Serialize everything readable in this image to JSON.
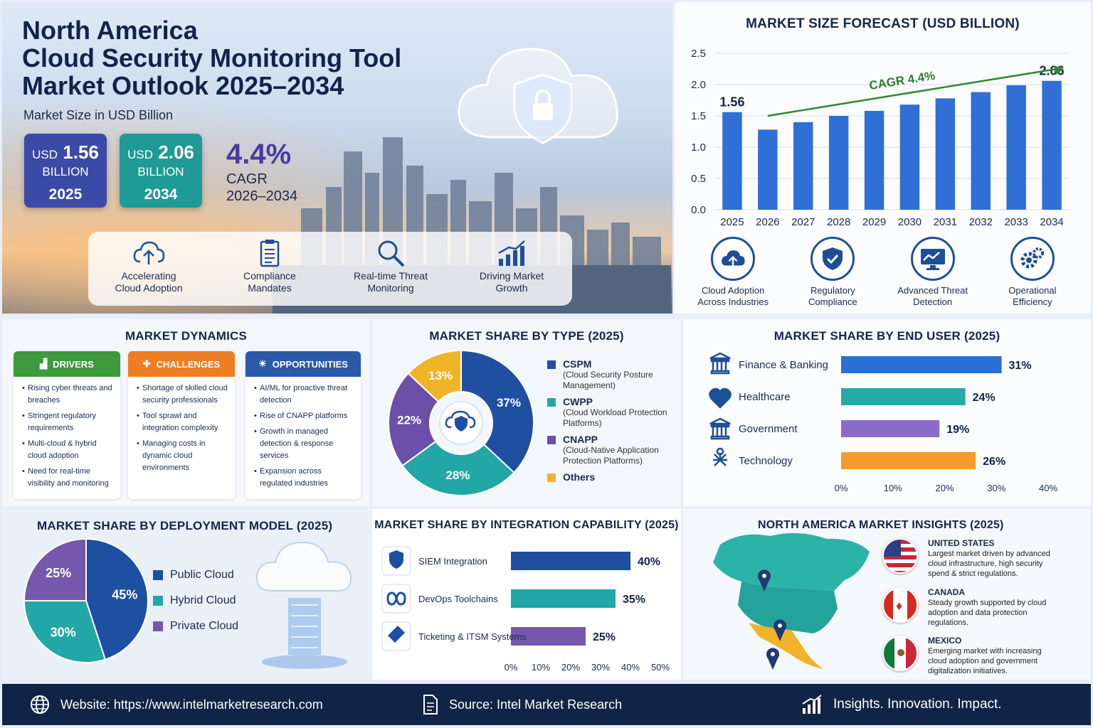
{
  "hero": {
    "title_line1": "North America",
    "title_line2": "Cloud Security Monitoring Tool",
    "title_line3": "Market Outlook 2025–2034",
    "subtitle": "Market Size in USD Billion",
    "kpi1": {
      "prefix": "USD",
      "value": "1.56",
      "unit": "BILLION",
      "year": "2025",
      "color": "#3a4aa6"
    },
    "kpi2": {
      "prefix": "USD",
      "value": "2.06",
      "unit": "BILLION",
      "year": "2034",
      "color": "#1f9a96"
    },
    "cagr_value": "4.4%",
    "cagr_label": "CAGR",
    "cagr_period": "2026–2034",
    "features": [
      {
        "icon": "cloud-upload-icon",
        "l1": "Accelerating",
        "l2": "Cloud Adoption"
      },
      {
        "icon": "clipboard-icon",
        "l1": "Compliance",
        "l2": "Mandates"
      },
      {
        "icon": "magnifier-icon",
        "l1": "Real-time Threat",
        "l2": "Monitoring"
      },
      {
        "icon": "growth-chart-icon",
        "l1": "Driving Market",
        "l2": "Growth"
      }
    ]
  },
  "forecast": {
    "title": "MARKET SIZE FORECAST (USD BILLION)",
    "cagr_annotation": "CAGR 4.4%",
    "first_label": "1.56",
    "last_label": "2.06",
    "icons": [
      {
        "icon": "cloud-upload-icon",
        "l1": "Cloud Adoption",
        "l2": "Across Industries"
      },
      {
        "icon": "shield-check-icon",
        "l1": "Regulatory",
        "l2": "Compliance"
      },
      {
        "icon": "monitor-icon",
        "l1": "Advanced Threat",
        "l2": "Detection"
      },
      {
        "icon": "gears-icon",
        "l1": "Operational",
        "l2": "Efficiency"
      }
    ]
  },
  "dynamics": {
    "title": "MARKET DYNAMICS",
    "drivers": {
      "label": "DRIVERS",
      "color": "#3d9a3d",
      "items": [
        "Rising cyber threats and breaches",
        "Stringent regulatory requirements",
        "Multi-cloud & hybrid cloud adoption",
        "Need for real-time visibility and monitoring"
      ]
    },
    "challenges": {
      "label": "CHALLENGES",
      "color": "#ef7d22",
      "items": [
        "Shortage of skilled cloud security professionals",
        "Tool sprawl and integration complexity",
        "Managing costs in dynamic cloud environments"
      ]
    },
    "opportunities": {
      "label": "OPPORTUNITIES",
      "color": "#2a5aa8",
      "items": [
        "AI/ML for proactive threat detection",
        "Rise of CNAPP platforms",
        "Growth in managed detection & response services",
        "Expansion across regulated industries"
      ]
    }
  },
  "type_legend": [
    {
      "name": "CSPM",
      "desc": "(Cloud Security Posture Management)",
      "color": "#1e4fa1"
    },
    {
      "name": "CWPP",
      "desc": "(Cloud Workload Protection Platforms)",
      "color": "#21a7a5"
    },
    {
      "name": "CNAPP",
      "desc": "(Cloud-Native Application Protection Platforms)",
      "color": "#6b4fa8"
    },
    {
      "name": "Others",
      "desc": "",
      "color": "#f0b429"
    }
  ],
  "end_user_icons": [
    "bank-icon",
    "heart-pulse-icon",
    "government-building-icon",
    "network-icon"
  ],
  "integration_icons": [
    "shield-check-icon",
    "infinity-icon",
    "ticket-icon"
  ],
  "insights": {
    "title": "NORTH AMERICA MARKET INSIGHTS (2025)",
    "countries": [
      {
        "name": "UNITED STATES",
        "desc": "Largest market driven by advanced cloud infrastructure, high security spend & strict regulations."
      },
      {
        "name": "CANADA",
        "desc": "Steady growth supported by cloud adoption and data protection regulations."
      },
      {
        "name": "MEXICO",
        "desc": "Emerging market with increasing cloud adoption and government digitalization initiatives."
      }
    ]
  },
  "footer": {
    "website": "Website: https://www.intelmarketresearch.com",
    "source": "Source: Intel Market Research",
    "tagline": "Insights. Innovation. Impact."
  },
  "chart_data": [
    {
      "type": "bar",
      "title": "MARKET SIZE FORECAST (USD BILLION)",
      "categories": [
        "2025",
        "2026",
        "2027",
        "2028",
        "2029",
        "2030",
        "2031",
        "2032",
        "2033",
        "2034"
      ],
      "values": [
        1.56,
        1.28,
        1.4,
        1.5,
        1.58,
        1.68,
        1.78,
        1.88,
        1.99,
        2.06
      ],
      "data_labels": {
        "2025": "1.56",
        "2034": "2.06"
      },
      "ylim": [
        0,
        2.5
      ],
      "yticks": [
        "0.0",
        "0.5",
        "1.0",
        "1.5",
        "2.0",
        "2.5"
      ],
      "color": "#2f6fd6",
      "annotation": "CAGR 4.4%",
      "grid": true
    },
    {
      "type": "pie",
      "style": "donut",
      "title": "MARKET SHARE BY TYPE (2025)",
      "categories": [
        "CSPM",
        "CWPP",
        "CNAPP",
        "Others"
      ],
      "values": [
        37,
        28,
        22,
        13
      ],
      "labels": [
        "37%",
        "28%",
        "22%",
        "13%"
      ],
      "colors": [
        "#1e4fa1",
        "#21a7a5",
        "#6b4fa8",
        "#f0b429"
      ]
    },
    {
      "type": "bar",
      "orientation": "horizontal",
      "title": "MARKET SHARE BY END USER (2025)",
      "categories": [
        "Finance & Banking",
        "Healthcare",
        "Government",
        "Technology"
      ],
      "values": [
        31,
        24,
        19,
        26
      ],
      "labels": [
        "31%",
        "24%",
        "19%",
        "26%"
      ],
      "colors": [
        "#2a6fd6",
        "#25aaa6",
        "#8a6cc8",
        "#f59a2c"
      ],
      "xlim": [
        0,
        40
      ],
      "xticks": [
        "0%",
        "10%",
        "20%",
        "30%",
        "40%"
      ]
    },
    {
      "type": "pie",
      "title": "MARKET SHARE BY DEPLOYMENT MODEL (2025)",
      "categories": [
        "Public Cloud",
        "Hybrid Cloud",
        "Private Cloud"
      ],
      "values": [
        45,
        30,
        25
      ],
      "labels": [
        "45%",
        "30%",
        "25%"
      ],
      "colors": [
        "#1e4fa1",
        "#21a7a5",
        "#7657ae"
      ]
    },
    {
      "type": "bar",
      "orientation": "horizontal",
      "title": "MARKET SHARE BY INTEGRATION CAPABILITY (2025)",
      "categories": [
        "SIEM Integration",
        "DevOps Toolchains",
        "Ticketing & ITSM Systems"
      ],
      "values": [
        40,
        35,
        25
      ],
      "labels": [
        "40%",
        "35%",
        "25%"
      ],
      "colors": [
        "#1e4fa1",
        "#21a7a5",
        "#7657ae"
      ],
      "xlim": [
        0,
        50
      ],
      "xticks": [
        "0%",
        "10%",
        "20%",
        "30%",
        "40%",
        "50%"
      ]
    }
  ]
}
